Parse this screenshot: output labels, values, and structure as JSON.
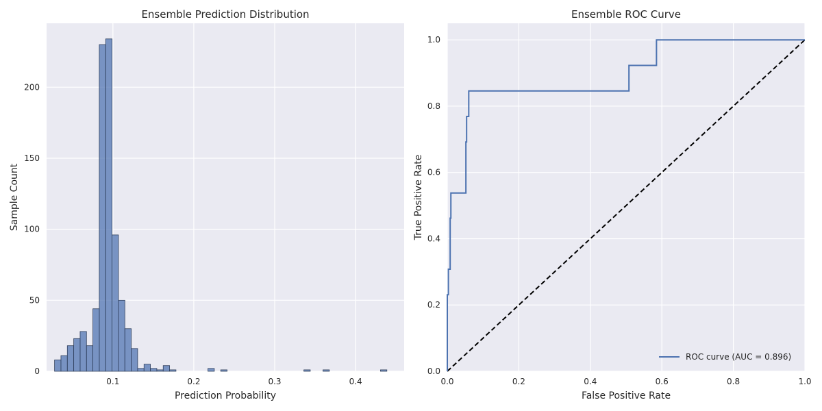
{
  "chart_data": [
    {
      "type": "bar",
      "title": "Ensemble Prediction Distribution",
      "xlabel": "Prediction Probability",
      "ylabel": "Sample Count",
      "xlim": [
        0.018,
        0.46
      ],
      "ylim": [
        0,
        245
      ],
      "xticks": [
        0.1,
        0.2,
        0.3,
        0.4
      ],
      "yticks": [
        0,
        50,
        100,
        150,
        200
      ],
      "grid": true,
      "bar_color": "#4c72b0",
      "bin_width": 0.0079,
      "bins": [
        {
          "x": 0.0318,
          "count": 8
        },
        {
          "x": 0.0397,
          "count": 11
        },
        {
          "x": 0.0476,
          "count": 18
        },
        {
          "x": 0.0555,
          "count": 23
        },
        {
          "x": 0.0634,
          "count": 28
        },
        {
          "x": 0.0713,
          "count": 18
        },
        {
          "x": 0.0792,
          "count": 44
        },
        {
          "x": 0.0871,
          "count": 230
        },
        {
          "x": 0.095,
          "count": 234
        },
        {
          "x": 0.1029,
          "count": 96
        },
        {
          "x": 0.1108,
          "count": 50
        },
        {
          "x": 0.1187,
          "count": 30
        },
        {
          "x": 0.1266,
          "count": 16
        },
        {
          "x": 0.1345,
          "count": 2
        },
        {
          "x": 0.1424,
          "count": 5
        },
        {
          "x": 0.1503,
          "count": 2
        },
        {
          "x": 0.1582,
          "count": 1
        },
        {
          "x": 0.1661,
          "count": 4
        },
        {
          "x": 0.174,
          "count": 1
        },
        {
          "x": 0.2214,
          "count": 2
        },
        {
          "x": 0.2372,
          "count": 1
        },
        {
          "x": 0.34,
          "count": 1
        },
        {
          "x": 0.3636,
          "count": 1
        },
        {
          "x": 0.4347,
          "count": 1
        }
      ]
    },
    {
      "type": "line",
      "title": "Ensemble ROC Curve",
      "xlabel": "False Positive Rate",
      "ylabel": "True Positive Rate",
      "xlim": [
        0,
        1.0
      ],
      "ylim": [
        0,
        1.05
      ],
      "xticks": [
        0.0,
        0.2,
        0.4,
        0.6,
        0.8,
        1.0
      ],
      "yticks": [
        0.0,
        0.2,
        0.4,
        0.6,
        0.8,
        1.0
      ],
      "grid": true,
      "legend_position": "lower-right",
      "series": [
        {
          "name": "ROC curve (AUC = 0.896)",
          "color": "#4c72b0",
          "style": "solid",
          "x": [
            0,
            0,
            0.003,
            0.003,
            0.008,
            0.008,
            0.01,
            0.01,
            0.052,
            0.052,
            0.054,
            0.054,
            0.06,
            0.06,
            0.508,
            0.508,
            0.585,
            0.585,
            1.0
          ],
          "y": [
            0,
            0.231,
            0.231,
            0.308,
            0.308,
            0.462,
            0.462,
            0.538,
            0.538,
            0.692,
            0.692,
            0.769,
            0.769,
            0.846,
            0.846,
            0.923,
            0.923,
            1.0,
            1.0
          ]
        },
        {
          "color": "#000000",
          "style": "dashed",
          "x": [
            0,
            1
          ],
          "y": [
            0,
            1
          ]
        }
      ]
    }
  ]
}
